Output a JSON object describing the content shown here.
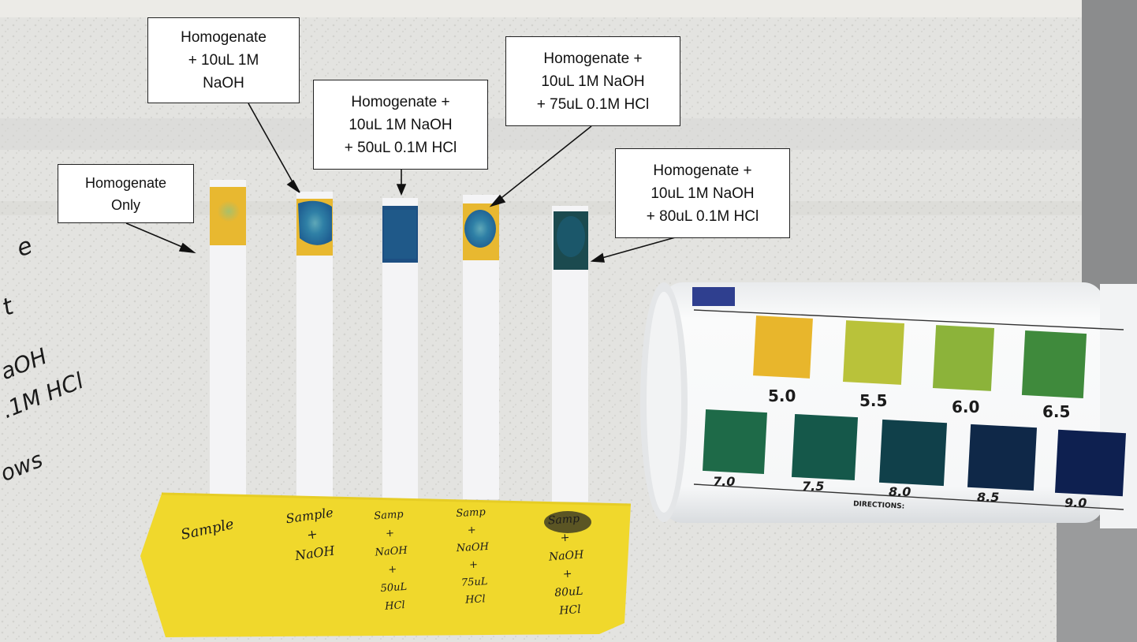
{
  "callouts": [
    {
      "lines": [
        "Homogenate",
        "Only"
      ]
    },
    {
      "lines": [
        "Homogenate",
        "+ 10uL 1M",
        "NaOH"
      ]
    },
    {
      "lines": [
        "Homogenate +",
        "10uL 1M NaOH",
        "+ 50uL 0.1M HCl"
      ]
    },
    {
      "lines": [
        "Homogenate +",
        "10uL 1M NaOH",
        "+ 75uL 0.1M HCl"
      ]
    },
    {
      "lines": [
        "Homogenate +",
        "10uL 1M NaOH",
        "+ 80uL 0.1M HCl"
      ]
    }
  ],
  "color_chart": {
    "top_row": [
      {
        "label": "5.0",
        "color": "#e8b62c"
      },
      {
        "label": "5.5",
        "color": "#b9c23a"
      },
      {
        "label": "6.0",
        "color": "#8cb33a"
      },
      {
        "label": "6.5",
        "color": "#3f8a3c"
      }
    ],
    "bottom_row": [
      {
        "label": "7.0",
        "color": "#1e6a48"
      },
      {
        "label": "7.5",
        "color": "#15584a"
      },
      {
        "label": "8.0",
        "color": "#10404a"
      },
      {
        "label": "8.5",
        "color": "#0f2848"
      },
      {
        "label": "9.0",
        "color": "#0e2050"
      }
    ],
    "directions_label": "DIRECTIONS:"
  },
  "tape_notes": [
    {
      "lines": [
        "Sample"
      ]
    },
    {
      "lines": [
        "Sample",
        "+",
        "NaOH"
      ]
    },
    {
      "lines": [
        "Samp",
        "+",
        "NaOH",
        "+",
        "50uL",
        "HCl"
      ]
    },
    {
      "lines": [
        "Samp",
        "+",
        "NaOH",
        "+",
        "75uL",
        "HCl"
      ]
    },
    {
      "lines": [
        "Samp",
        "+",
        "NaOH",
        "+",
        "80uL",
        "HCl"
      ]
    }
  ],
  "margin_scribbles": [
    "e",
    "t",
    "aOH",
    ".1M HCl",
    "ows"
  ],
  "colors": {
    "tape": "#f0d82c",
    "paper": "#e2e2df",
    "strip": "#f4f4f6",
    "indicator_yellow": "#e8b830",
    "indicator_blue": "#1d5f8e"
  }
}
